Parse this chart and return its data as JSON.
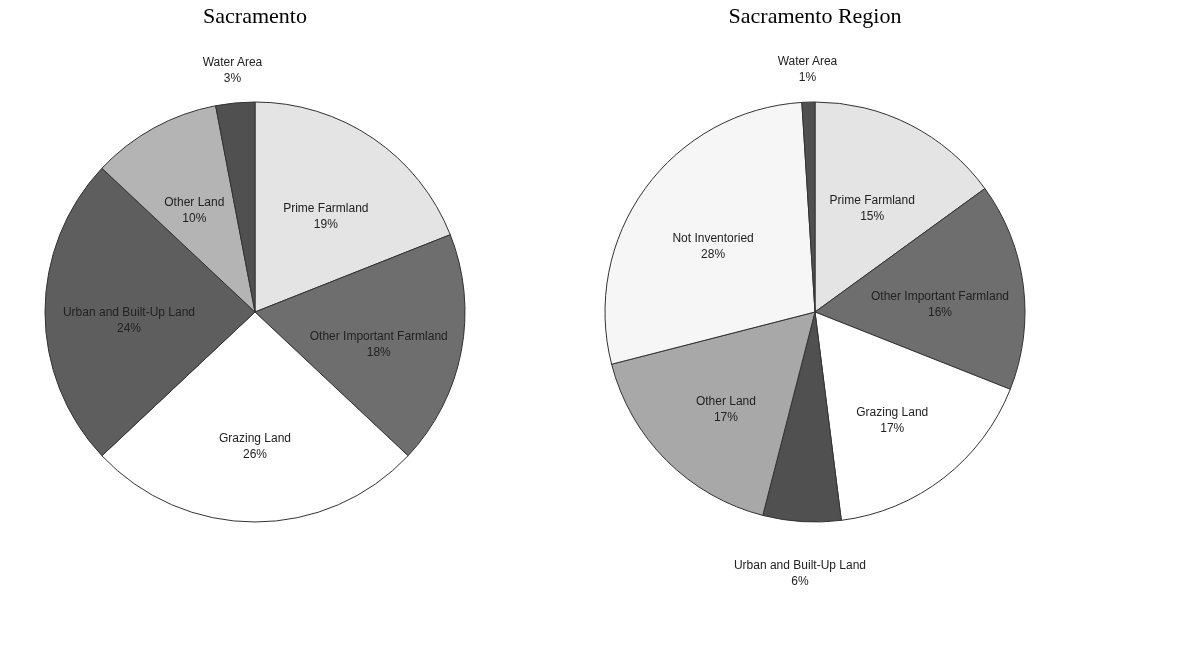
{
  "chart_data": [
    {
      "type": "pie",
      "title": "Sacramento",
      "categories": [
        "Prime Farmland",
        "Other Important Farmland",
        "Grazing Land",
        "Urban and Built-Up Land",
        "Other Land",
        "Water Area"
      ],
      "values": [
        19,
        18,
        26,
        24,
        10,
        3
      ],
      "value_labels": [
        "19%",
        "18%",
        "26%",
        "24%",
        "10%",
        "3%"
      ],
      "colors": [
        "#e4e4e4",
        "#6e6e6e",
        "#ffffff",
        "#5e5e5e",
        "#b4b4b4",
        "#505050"
      ],
      "legend": false
    },
    {
      "type": "pie",
      "title": "Sacramento Region",
      "categories": [
        "Prime Farmland",
        "Other Important Farmland",
        "Grazing Land",
        "Urban and Built-Up Land",
        "Other Land",
        "Not Inventoried",
        "Water Area"
      ],
      "values": [
        15,
        16,
        17,
        6,
        17,
        28,
        1
      ],
      "value_labels": [
        "15%",
        "16%",
        "17%",
        "6%",
        "17%",
        "28%",
        "1%"
      ],
      "colors": [
        "#e4e4e4",
        "#6e6e6e",
        "#ffffff",
        "#505050",
        "#a8a8a8",
        "#f6f6f6",
        "#505050"
      ],
      "legend": false
    }
  ]
}
